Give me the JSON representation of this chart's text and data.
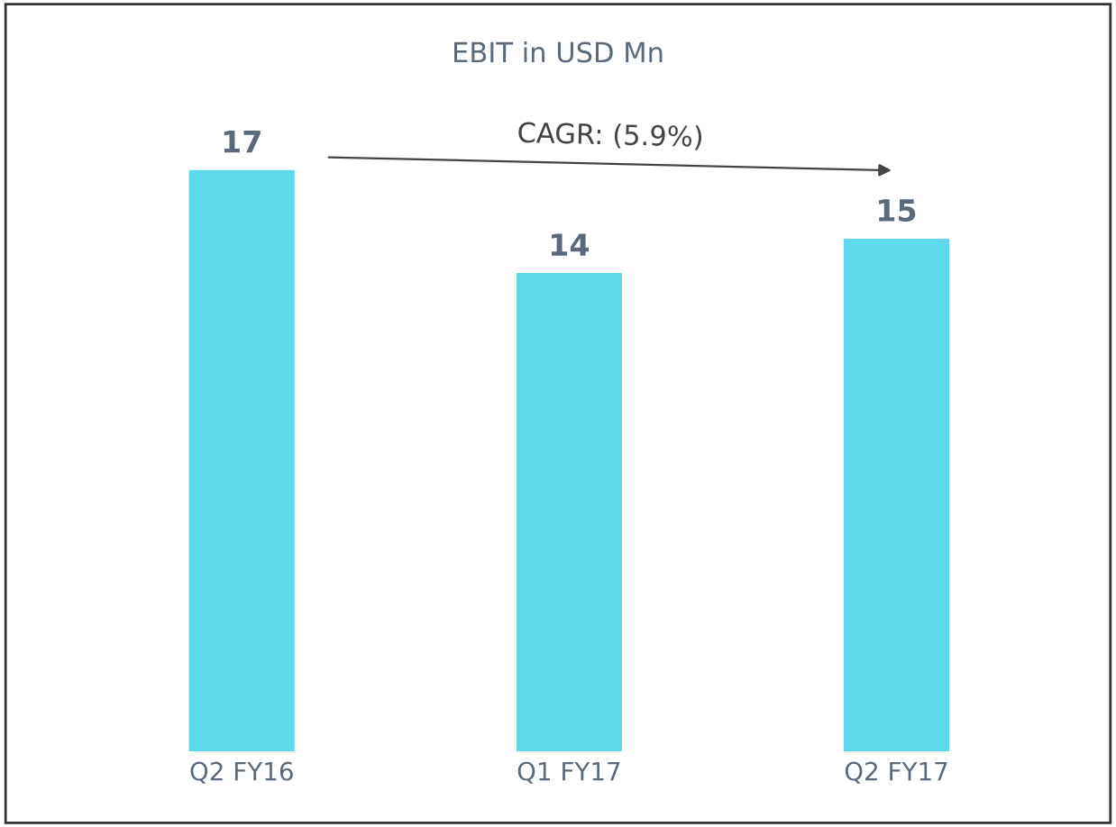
{
  "chart_data": {
    "type": "bar",
    "title": "EBIT in USD Mn",
    "categories": [
      "Q2 FY16",
      "Q1 FY17",
      "Q2 FY17"
    ],
    "values": [
      17,
      14,
      15
    ],
    "color": "#5fd8ee",
    "data_labels": true,
    "annotations": [
      "CAGR: (5.9%)"
    ],
    "grid": false,
    "legend": false
  }
}
